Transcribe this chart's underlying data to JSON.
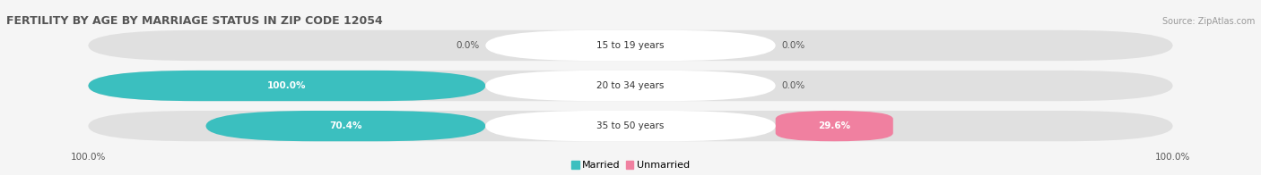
{
  "title": "FERTILITY BY AGE BY MARRIAGE STATUS IN ZIP CODE 12054",
  "source": "Source: ZipAtlas.com",
  "age_groups": [
    "15 to 19 years",
    "20 to 34 years",
    "35 to 50 years"
  ],
  "married_values": [
    0.0,
    100.0,
    70.4
  ],
  "unmarried_values": [
    0.0,
    0.0,
    29.6
  ],
  "married_color": "#3bbfbf",
  "unmarried_color": "#f080a0",
  "bar_bg_color": "#e0e0e0",
  "fig_bg_color": "#f5f5f5",
  "label_outside_color": "#555555",
  "label_inside_color": "#ffffff",
  "title_color": "#555555",
  "source_color": "#999999",
  "axis_label_color": "#555555",
  "left_axis_label": "100.0%",
  "right_axis_label": "100.0%",
  "figsize": [
    14.06,
    1.96
  ],
  "dpi": 100
}
